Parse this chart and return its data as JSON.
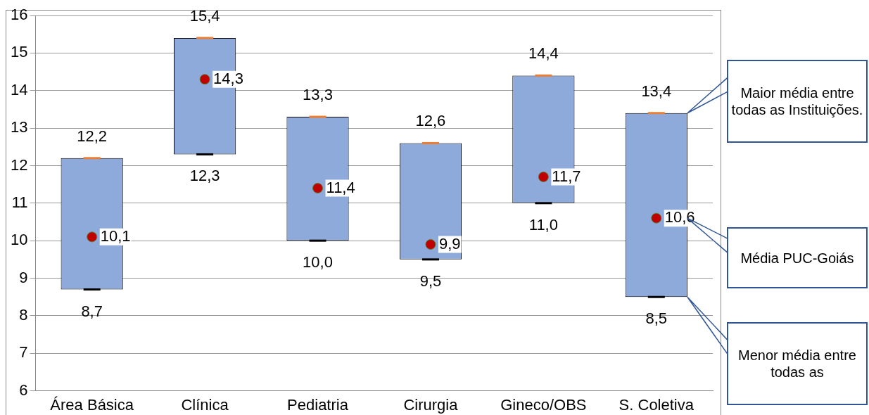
{
  "chart_data": {
    "type": "bar",
    "categories": [
      "Área Básica",
      "Clínica",
      "Pediatria",
      "Cirurgia",
      "Gineco/OBS",
      "S. Coletiva"
    ],
    "series": [
      {
        "color": "#8eaadb",
        "base": [
          8.7,
          12.3,
          10.0,
          9.5,
          11.0,
          8.5
        ],
        "values": [
          3.5,
          3.1,
          3.3,
          3.1,
          3.4,
          4.9
        ]
      },
      {
        "type": "scatter",
        "color": "#c00000",
        "marker": "circle",
        "values": [
          10.1,
          14.3,
          11.4,
          9.9,
          11.7,
          10.6
        ],
        "value_labels": [
          "10,1",
          "14,3",
          "11,4",
          "9,9",
          "11,7",
          "10,6"
        ]
      }
    ],
    "ylim": [
      6,
      16
    ],
    "yticks": [
      6,
      7,
      8,
      9,
      10,
      11,
      12,
      13,
      14,
      15,
      16
    ],
    "grid": "y",
    "legend": false,
    "annotations": [
      {
        "text": "12,2",
        "x": "Área Básica",
        "y": 12.2
      },
      {
        "text": "8,7",
        "x": "Área Básica",
        "y": 8.7
      },
      {
        "text": "15,4",
        "x": "Clínica",
        "y": 15.4
      },
      {
        "text": "12,3",
        "x": "Clínica",
        "y": 12.3
      },
      {
        "text": "13,3",
        "x": "Pediatria",
        "y": 13.3
      },
      {
        "text": "10,0",
        "x": "Pediatria",
        "y": 10.0
      },
      {
        "text": "12,6",
        "x": "Cirurgia",
        "y": 12.6
      },
      {
        "text": "9,5",
        "x": "Cirurgia",
        "y": 9.5
      },
      {
        "text": "14,4",
        "x": "Gineco/OBS",
        "y": 14.4
      },
      {
        "text": "11,0",
        "x": "Gineco/OBS",
        "y": 11.0
      },
      {
        "text": "13,4",
        "x": "S. Coletiva",
        "y": 13.4
      },
      {
        "text": "8,5",
        "x": "S. Coletiva",
        "y": 8.5
      },
      "Maior média entre todas as Instituições.",
      "Média PUC-Goiás",
      "Menor média entre todas as"
    ]
  }
}
